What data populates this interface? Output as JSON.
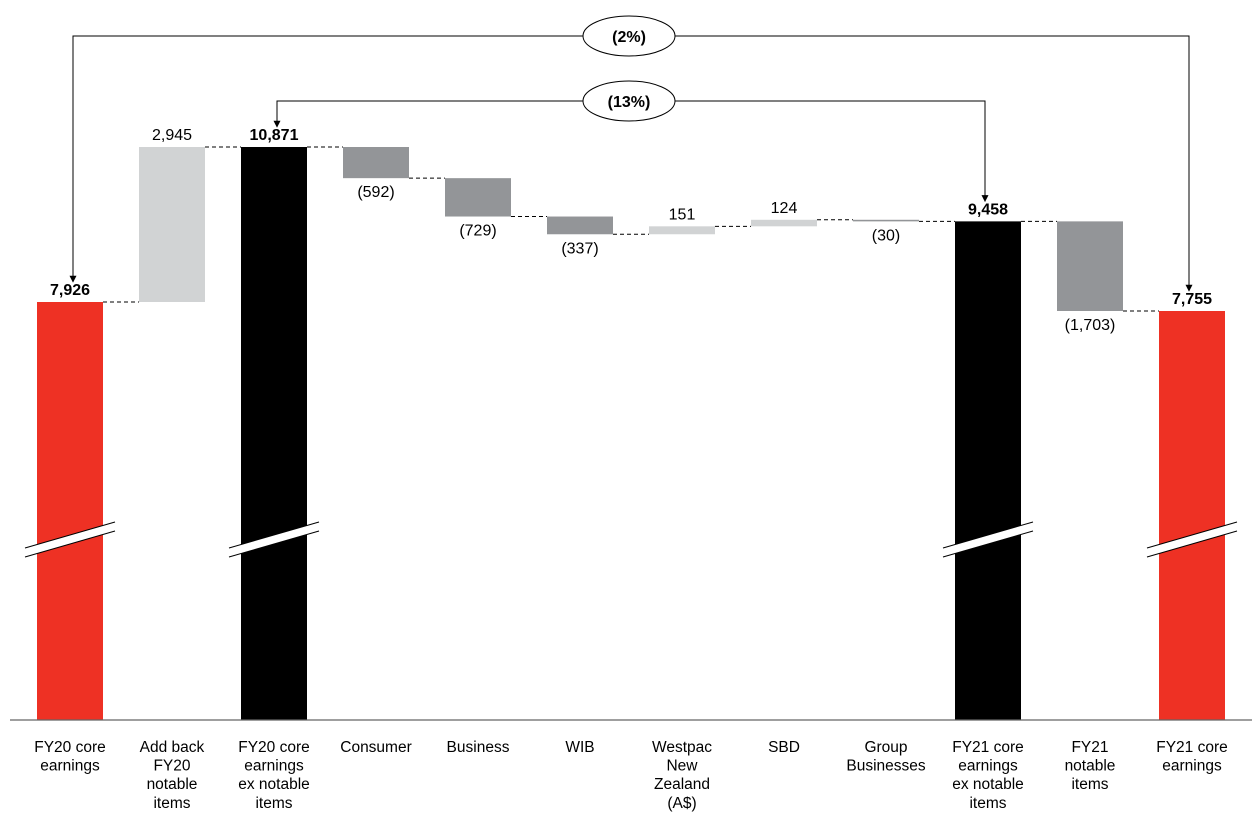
{
  "chart_data": {
    "type": "bar",
    "subtype": "waterfall",
    "title": "",
    "xlabel": "",
    "ylabel": "",
    "ylim": [
      6700,
      11200
    ],
    "axis_break": true,
    "grid": false,
    "legend": "none",
    "colors": {
      "total_red": "#ee3124",
      "total_black": "#000000",
      "increase": "#d1d3d4",
      "decrease": "#939598"
    },
    "bars": [
      {
        "category": "FY20 core earnings",
        "lines": [
          "FY20 core",
          "earnings"
        ],
        "kind": "total",
        "value": 7926,
        "label": "7,926",
        "color": "#ee3124",
        "broken": true
      },
      {
        "category": "Add back FY20 notable items",
        "lines": [
          "Add back",
          "FY20",
          "notable",
          "items"
        ],
        "kind": "delta",
        "value": 2945,
        "label": "2,945",
        "color": "#d1d3d4"
      },
      {
        "category": "FY20 core earnings ex notable items",
        "lines": [
          "FY20 core",
          "earnings",
          "ex notable",
          "items"
        ],
        "kind": "total",
        "value": 10871,
        "label": "10,871",
        "color": "#000000",
        "broken": true
      },
      {
        "category": "Consumer",
        "lines": [
          "Consumer"
        ],
        "kind": "delta",
        "value": -592,
        "label": "(592)",
        "color": "#939598"
      },
      {
        "category": "Business",
        "lines": [
          "Business"
        ],
        "kind": "delta",
        "value": -729,
        "label": "(729)",
        "color": "#939598"
      },
      {
        "category": "WIB",
        "lines": [
          "WIB"
        ],
        "kind": "delta",
        "value": -337,
        "label": "(337)",
        "color": "#939598"
      },
      {
        "category": "Westpac New Zealand (A$)",
        "lines": [
          "Westpac",
          "New",
          "Zealand",
          "(A$)"
        ],
        "kind": "delta",
        "value": 151,
        "label": "151",
        "color": "#d1d3d4"
      },
      {
        "category": "SBD",
        "lines": [
          "SBD"
        ],
        "kind": "delta",
        "value": 124,
        "label": "124",
        "color": "#d1d3d4"
      },
      {
        "category": "Group Businesses",
        "lines": [
          "Group",
          "Businesses"
        ],
        "kind": "delta",
        "value": -30,
        "label": "(30)",
        "color": "#939598"
      },
      {
        "category": "FY21 core earnings ex notable items",
        "lines": [
          "FY21 core",
          "earnings",
          "ex notable",
          "items"
        ],
        "kind": "total",
        "value": 9458,
        "label": "9,458",
        "color": "#000000",
        "broken": true
      },
      {
        "category": "FY21 notable items",
        "lines": [
          "FY21",
          "notable",
          "items"
        ],
        "kind": "delta",
        "value": -1703,
        "label": "(1,703)",
        "color": "#939598"
      },
      {
        "category": "FY21 core earnings",
        "lines": [
          "FY21 core",
          "earnings"
        ],
        "kind": "total",
        "value": 7755,
        "label": "7,755",
        "color": "#ee3124",
        "broken": true
      }
    ],
    "annotations": [
      {
        "text": "(2%)",
        "from": "FY20 core earnings",
        "to": "FY21 core earnings"
      },
      {
        "text": "(13%)",
        "from": "FY20 core earnings ex notable items",
        "to": "FY21 core earnings ex notable items"
      }
    ]
  }
}
